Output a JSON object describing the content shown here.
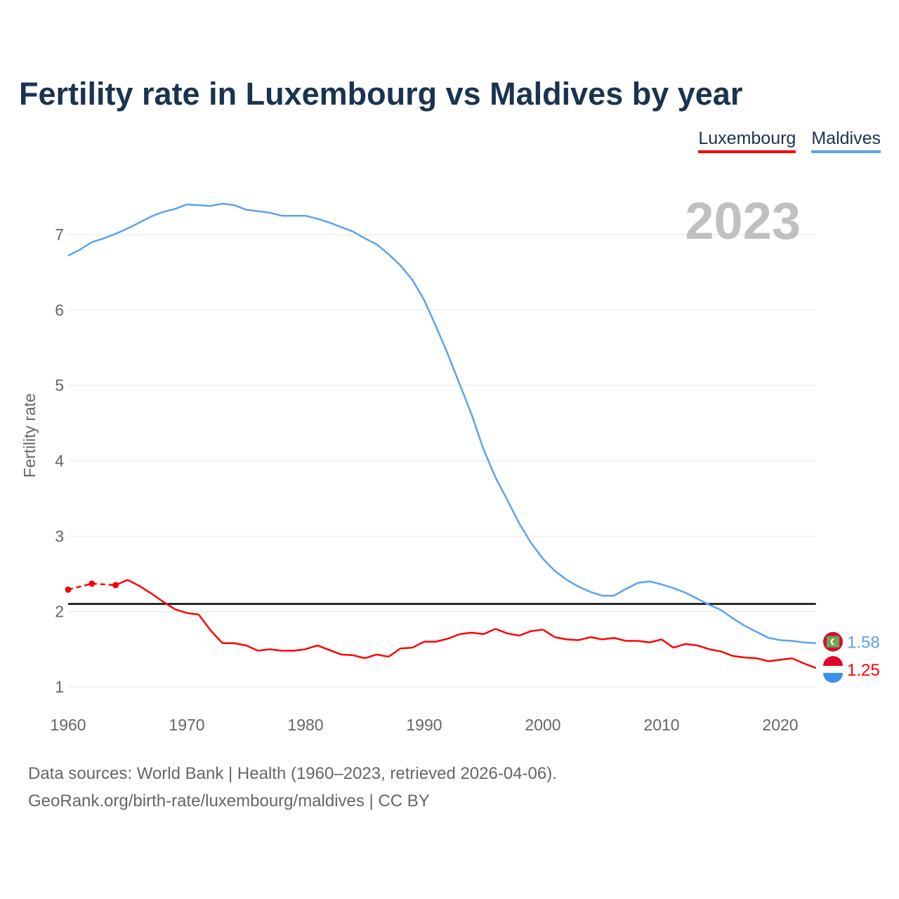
{
  "chart_data": {
    "type": "line",
    "title": "Fertility rate in Luxembourg vs Maldives by year",
    "ylabel": "Fertility rate",
    "xlabel": "",
    "year_label": "2023",
    "xlim": [
      1960,
      2023
    ],
    "ylim": [
      1,
      7.5
    ],
    "x_ticks": [
      1960,
      1970,
      1980,
      1990,
      2000,
      2010,
      2020
    ],
    "y_ticks": [
      1,
      2,
      3,
      4,
      5,
      6,
      7
    ],
    "reference_line": 2.1,
    "legend_position": "top-right",
    "start_year": 1960,
    "series": [
      {
        "name": "Luxembourg",
        "color": "#ff0000",
        "end_label": "1.25",
        "values": [
          2.29,
          null,
          2.37,
          null,
          2.35,
          2.42,
          2.34,
          2.24,
          2.13,
          2.03,
          1.98,
          1.96,
          1.75,
          1.58,
          1.58,
          1.55,
          1.48,
          1.5,
          1.48,
          1.48,
          1.5,
          1.55,
          1.49,
          1.43,
          1.42,
          1.38,
          1.43,
          1.4,
          1.51,
          1.52,
          1.6,
          1.6,
          1.64,
          1.7,
          1.72,
          1.7,
          1.77,
          1.71,
          1.68,
          1.74,
          1.76,
          1.66,
          1.63,
          1.62,
          1.66,
          1.63,
          1.65,
          1.61,
          1.61,
          1.59,
          1.63,
          1.52,
          1.57,
          1.55,
          1.5,
          1.47,
          1.41,
          1.39,
          1.38,
          1.34,
          1.36,
          1.38,
          1.31,
          1.25
        ]
      },
      {
        "name": "Maldives",
        "color": "#5ba3ec",
        "end_label": "1.58",
        "values": [
          6.72,
          6.8,
          6.9,
          6.95,
          7.01,
          7.08,
          7.16,
          7.24,
          7.3,
          7.34,
          7.4,
          7.39,
          7.38,
          7.41,
          7.39,
          7.33,
          7.31,
          7.29,
          7.25,
          7.25,
          7.25,
          7.21,
          7.16,
          7.1,
          7.04,
          6.95,
          6.87,
          6.74,
          6.59,
          6.4,
          6.13,
          5.78,
          5.41,
          5.01,
          4.61,
          4.15,
          3.78,
          3.48,
          3.17,
          2.91,
          2.7,
          2.54,
          2.42,
          2.33,
          2.26,
          2.21,
          2.21,
          2.3,
          2.38,
          2.4,
          2.36,
          2.31,
          2.25,
          2.17,
          2.09,
          2.02,
          1.91,
          1.81,
          1.73,
          1.65,
          1.62,
          1.61,
          1.59,
          1.58
        ]
      }
    ]
  },
  "footer": {
    "line1": "Data sources: World Bank | Health (1960–2023, retrieved 2026-04-06).",
    "line2": "GeoRank.org/birth-rate/luxembourg/maldives | CC BY"
  }
}
